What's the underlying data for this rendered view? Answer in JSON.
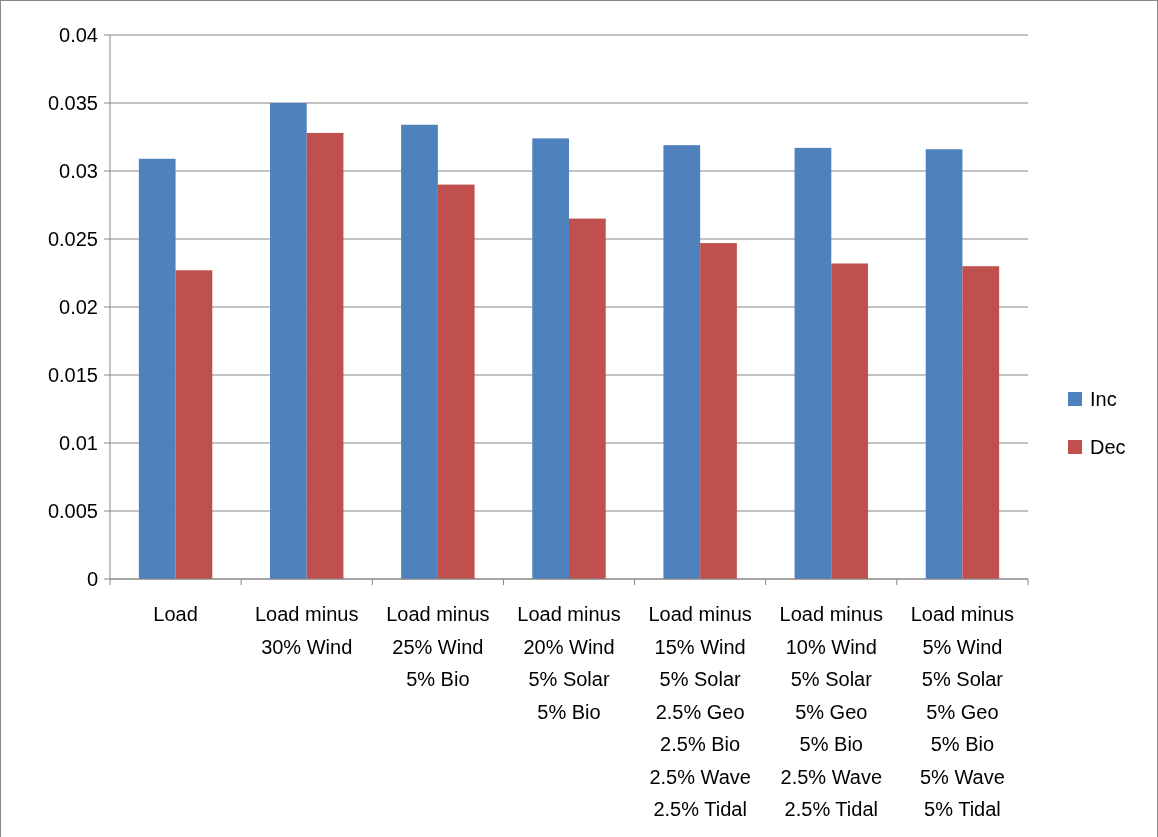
{
  "chart_data": {
    "type": "bar",
    "categories": [
      "Load",
      "Load minus\n30% Wind",
      "Load minus\n25% Wind\n5% Bio",
      "Load minus\n20% Wind\n5% Solar\n5% Bio",
      "Load minus\n15% Wind\n5% Solar\n2.5% Geo\n2.5% Bio\n2.5% Wave\n2.5% Tidal",
      "Load minus\n10% Wind\n5% Solar\n5% Geo\n5% Bio\n2.5% Wave\n2.5% Tidal",
      "Load minus\n5% Wind\n5% Solar\n5% Geo\n5% Bio\n5% Wave\n5% Tidal"
    ],
    "series": [
      {
        "name": "Inc",
        "color": "#4f81bd",
        "values": [
          0.0309,
          0.035,
          0.0334,
          0.0324,
          0.0319,
          0.0317,
          0.0316
        ]
      },
      {
        "name": "Dec",
        "color": "#c0504d",
        "values": [
          0.0227,
          0.0328,
          0.029,
          0.0265,
          0.0247,
          0.0232,
          0.023
        ]
      }
    ],
    "ylim": [
      0,
      0.04
    ],
    "yticks": [
      0,
      0.005,
      0.01,
      0.015,
      0.02,
      0.025,
      0.03,
      0.035,
      0.04
    ],
    "grid": "y",
    "legend": "right"
  }
}
